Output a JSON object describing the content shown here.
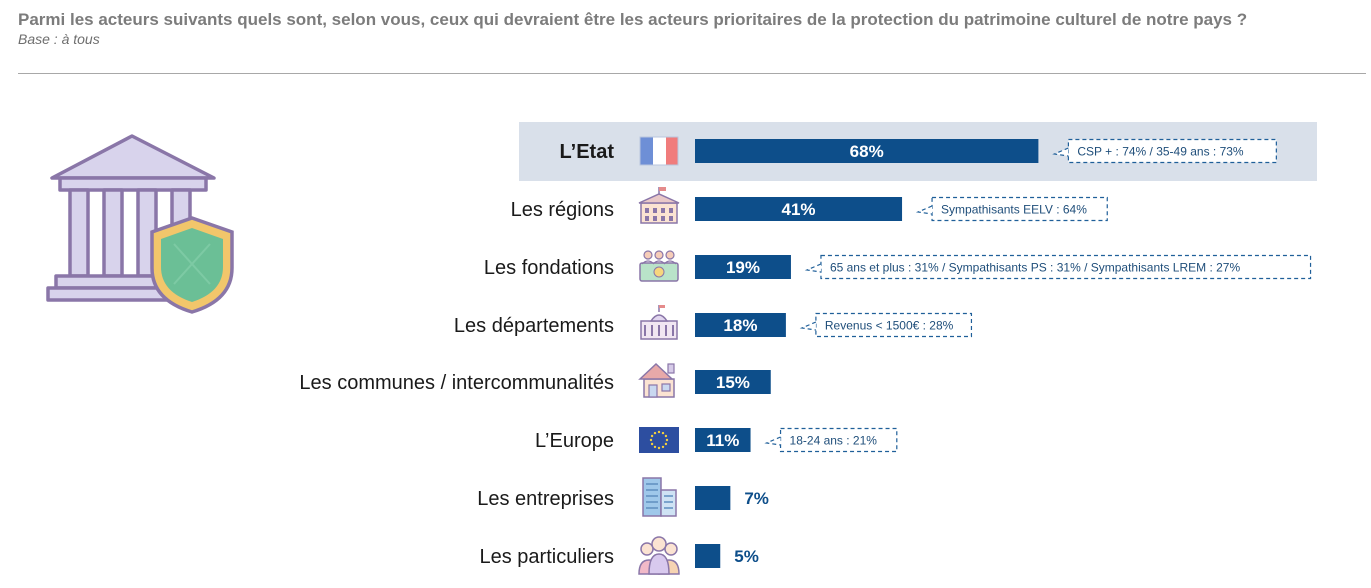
{
  "header": {
    "question": "Parmi les acteurs suivants quels sont, selon vous, ceux qui devraient être les acteurs prioritaires de la protection du patrimoine culturel de notre pays ?",
    "base": "Base : à tous"
  },
  "colors": {
    "bar": "#0d4e8a",
    "callout_border": "#1f5f99",
    "callout_text": "#1f4e7a",
    "highlight": "#d9e0ea",
    "icon_purple": "#8a76a8",
    "shield_green": "#6bbf96",
    "shield_yellow": "#f2c66b"
  },
  "illustration": {
    "icon": "museum-with-shield-icon"
  },
  "chart_data": {
    "type": "bar",
    "orientation": "horizontal",
    "unit": "%",
    "xlim": [
      0,
      100
    ],
    "grid": false,
    "highlighted_category": "L’Etat",
    "categories": [
      "L’Etat",
      "Les régions",
      "Les fondations",
      "Les départements",
      "Les communes / intercommunalités",
      "L’Europe",
      "Les entreprises",
      "Les particuliers"
    ],
    "values": [
      68,
      41,
      19,
      18,
      15,
      11,
      7,
      5
    ],
    "value_labels": [
      "68%",
      "41%",
      "19%",
      "18%",
      "15%",
      "11%",
      "7%",
      "5%"
    ],
    "icons": [
      "french-flag-icon",
      "town-hall-icon",
      "people-money-icon",
      "department-building-icon",
      "house-icon",
      "eu-flag-icon",
      "office-building-icon",
      "people-group-icon"
    ],
    "annotations": [
      "CSP + : 74% / 35-49 ans : 73%",
      "Sympathisants EELV : 64%",
      "65 ans et plus : 31% / Sympathisants PS : 31% / Sympathisants LREM : 27%",
      "Revenus < 1500€ : 28%",
      "",
      "18-24 ans : 21%",
      "",
      ""
    ]
  }
}
